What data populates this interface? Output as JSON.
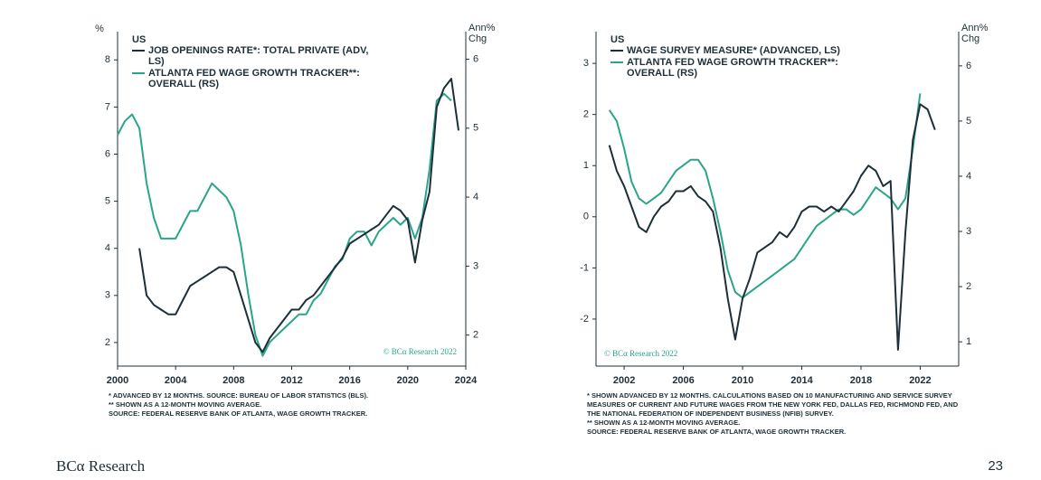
{
  "chart_data": [
    {
      "type": "line",
      "title": "US",
      "ylabel": "%",
      "y2label": "Ann% Chg",
      "annotation": "© BCα Research 2022",
      "x": [
        2000,
        2000.5,
        2001,
        2001.5,
        2002,
        2002.5,
        2003,
        2003.5,
        2004,
        2004.5,
        2005,
        2005.5,
        2006,
        2006.5,
        2007,
        2007.5,
        2008,
        2008.5,
        2009,
        2009.5,
        2010,
        2010.5,
        2011,
        2011.5,
        2012,
        2012.5,
        2013,
        2013.5,
        2014,
        2014.5,
        2015,
        2015.5,
        2016,
        2016.5,
        2017,
        2017.5,
        2018,
        2018.5,
        2019,
        2019.5,
        2020,
        2020.5,
        2021,
        2021.5,
        2022,
        2022.5,
        2023,
        2023.5
      ],
      "xlim": [
        2000,
        2024
      ],
      "xticks": [
        2000,
        2004,
        2008,
        2012,
        2016,
        2020,
        2024
      ],
      "ylim": [
        1.5,
        8.6
      ],
      "yticks": [
        2,
        3,
        4,
        5,
        6,
        7,
        8
      ],
      "y2lim": [
        1.55,
        6.4
      ],
      "y2ticks": [
        2,
        3,
        4,
        5,
        6
      ],
      "series": [
        {
          "name": "JOB OPENINGS RATE*: TOTAL PRIVATE (ADV, LS)",
          "color": "#1d2f38",
          "axis": "y",
          "values": [
            null,
            null,
            null,
            4.0,
            3.0,
            2.8,
            2.7,
            2.6,
            2.6,
            2.9,
            3.2,
            3.3,
            3.4,
            3.5,
            3.6,
            3.6,
            3.5,
            3.0,
            2.5,
            2.0,
            1.8,
            2.1,
            2.3,
            2.5,
            2.7,
            2.7,
            2.9,
            3.0,
            3.2,
            3.4,
            3.6,
            3.8,
            4.1,
            4.2,
            4.3,
            4.4,
            4.5,
            4.7,
            4.9,
            4.8,
            4.6,
            3.7,
            4.6,
            5.2,
            7.0,
            7.4,
            7.6,
            6.5
          ]
        },
        {
          "name": "ATLANTA FED WAGE GROWTH TRACKER**: OVERALL (RS)",
          "color": "#2aa58a",
          "axis": "y2",
          "values": [
            4.9,
            5.1,
            5.2,
            5.0,
            4.2,
            3.7,
            3.4,
            3.4,
            3.4,
            3.6,
            3.8,
            3.8,
            4.0,
            4.2,
            4.1,
            4.0,
            3.8,
            3.3,
            2.6,
            2.0,
            1.7,
            1.9,
            2.0,
            2.1,
            2.2,
            2.3,
            2.3,
            2.5,
            2.6,
            2.8,
            3.0,
            3.1,
            3.4,
            3.5,
            3.5,
            3.3,
            3.5,
            3.6,
            3.7,
            3.6,
            3.7,
            3.4,
            3.7,
            4.4,
            5.4,
            5.5,
            5.4,
            null
          ]
        }
      ],
      "notes": [
        "* ADVANCED BY 12 MONTHS. SOURCE: BUREAU OF LABOR STATISTICS (BLS).",
        "** SHOWN AS A 12-MONTH MOVING AVERAGE.",
        "SOURCE: FEDERAL RESERVE BANK OF ATLANTA, WAGE GROWTH TRACKER."
      ]
    },
    {
      "type": "line",
      "title": "US",
      "y2label": "Ann% Chg",
      "annotation": "© BCα Research 2022",
      "x": [
        2001,
        2001.5,
        2002,
        2002.5,
        2003,
        2003.5,
        2004,
        2004.5,
        2005,
        2005.5,
        2006,
        2006.5,
        2007,
        2007.5,
        2008,
        2008.5,
        2009,
        2009.5,
        2010,
        2010.5,
        2011,
        2011.5,
        2012,
        2012.5,
        2013,
        2013.5,
        2014,
        2014.5,
        2015,
        2015.5,
        2016,
        2016.5,
        2017,
        2017.5,
        2018,
        2018.5,
        2019,
        2019.5,
        2020,
        2020.5,
        2021,
        2021.5,
        2022,
        2022.5,
        2023
      ],
      "xlim": [
        2000.1,
        2024.6
      ],
      "xticks": [
        2002,
        2006,
        2010,
        2014,
        2018,
        2022
      ],
      "ylim": [
        -2.92,
        3.62
      ],
      "yticks": [
        -2,
        -1,
        0,
        1,
        2,
        3
      ],
      "y2lim": [
        0.56,
        6.62
      ],
      "y2ticks": [
        1,
        2,
        3,
        4,
        5,
        6
      ],
      "series": [
        {
          "name": "WAGE SURVEY MEASURE* (ADVANCED, LS)",
          "color": "#1d2f38",
          "axis": "y",
          "values": [
            1.4,
            0.9,
            0.6,
            0.2,
            -0.2,
            -0.3,
            0.0,
            0.2,
            0.3,
            0.5,
            0.5,
            0.6,
            0.4,
            0.3,
            0.1,
            -0.6,
            -1.6,
            -2.4,
            -1.6,
            -1.2,
            -0.7,
            -0.6,
            -0.5,
            -0.3,
            -0.4,
            -0.2,
            0.1,
            0.2,
            0.2,
            0.1,
            0.2,
            0.1,
            0.3,
            0.5,
            0.8,
            1.0,
            0.9,
            0.6,
            0.7,
            -2.6,
            -0.3,
            1.5,
            2.2,
            2.1,
            1.7
          ]
        },
        {
          "name": "ATLANTA FED WAGE GROWTH TRACKER**: OVERALL (RS)",
          "color": "#2aa58a",
          "axis": "y2",
          "values": [
            5.2,
            5.0,
            4.5,
            3.9,
            3.6,
            3.5,
            3.6,
            3.7,
            3.9,
            4.1,
            4.2,
            4.3,
            4.3,
            4.1,
            3.6,
            3.0,
            2.3,
            1.9,
            1.8,
            1.9,
            2.0,
            2.1,
            2.2,
            2.3,
            2.4,
            2.5,
            2.7,
            2.9,
            3.1,
            3.2,
            3.3,
            3.4,
            3.4,
            3.3,
            3.4,
            3.6,
            3.8,
            3.7,
            3.6,
            3.4,
            3.6,
            4.5,
            5.5,
            null,
            null
          ]
        }
      ],
      "notes": [
        "* SHOWN ADVANCED BY 12 MONTHS. CALCULATIONS BASED ON 10 MANUFACTURING AND SERVICE SURVEY MEASURES OF CURRENT AND FUTURE WAGES FROM THE NEW YORK FED, DALLAS FED, RICHMOND FED, AND THE NATIONAL FEDERATION OF INDEPENDENT BUSINESS (NFIB) SURVEY.",
        "** SHOWN AS A 12-MONTH MOVING AVERAGE.",
        "SOURCE: FEDERAL RESERVE BANK OF ATLANTA, WAGE GROWTH TRACKER."
      ]
    }
  ],
  "footer": {
    "brand": "BCα Research",
    "page": 23
  }
}
